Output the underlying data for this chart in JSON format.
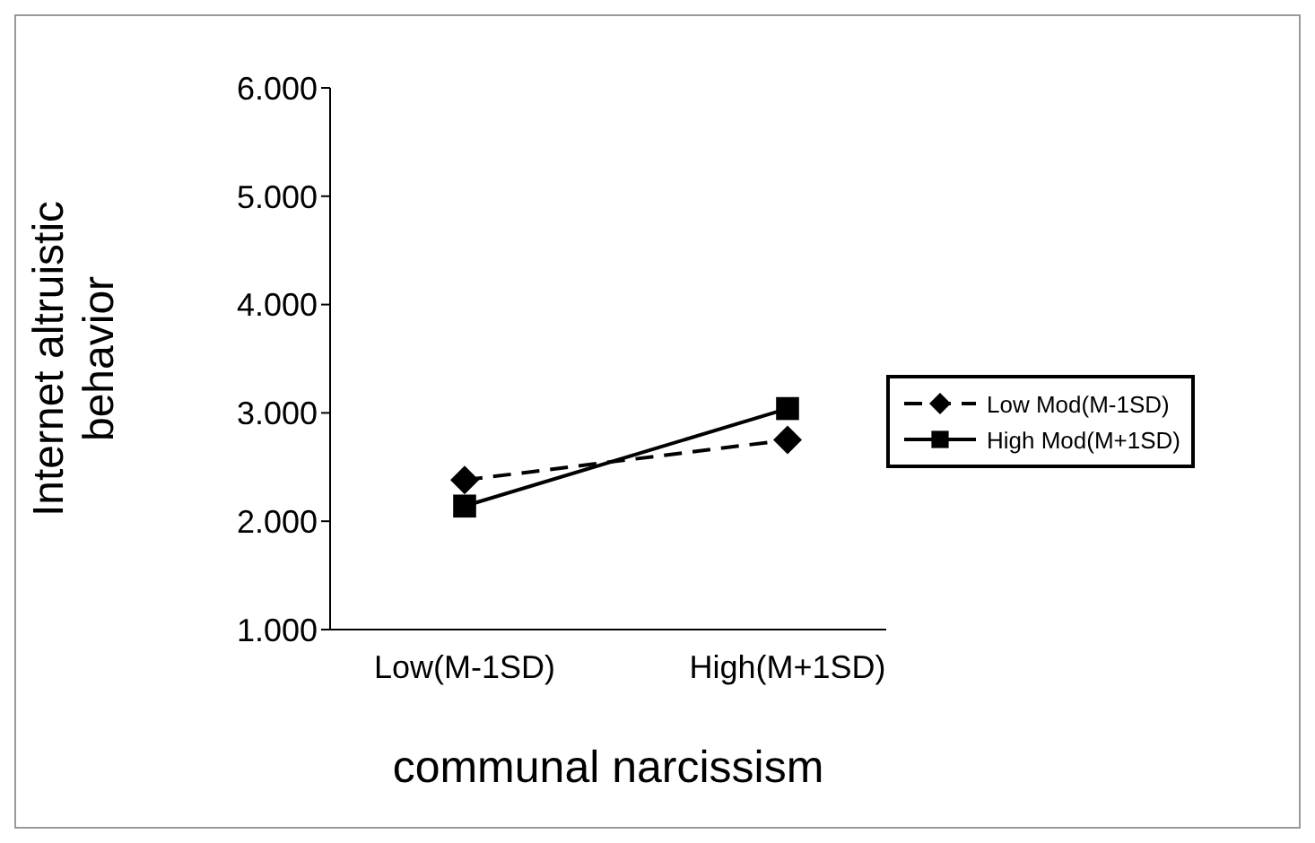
{
  "chart_data": {
    "type": "line",
    "xlabel": "communal narcissism",
    "ylabel": "Internet altruistic behavior",
    "categories": [
      "Low(M-1SD)",
      "High(M+1SD)"
    ],
    "series": [
      {
        "name": "Low Mod(M-1SD)",
        "color": "#000000",
        "values": [
          2.38,
          2.75
        ],
        "marker": "diamond",
        "line_style": "dashed"
      },
      {
        "name": "High Mod(M+1SD)",
        "color": "#000000",
        "values": [
          2.14,
          3.04
        ],
        "marker": "square",
        "line_style": "solid"
      }
    ],
    "ylim": [
      1,
      6
    ],
    "yticks": [
      {
        "value": 1,
        "label": "1.000"
      },
      {
        "value": 2,
        "label": "2.000"
      },
      {
        "value": 3,
        "label": "3.000"
      },
      {
        "value": 4,
        "label": "4.000"
      },
      {
        "value": 5,
        "label": "5.000"
      },
      {
        "value": 6,
        "label": "6.000"
      }
    ],
    "grid": false,
    "legend": "right"
  }
}
